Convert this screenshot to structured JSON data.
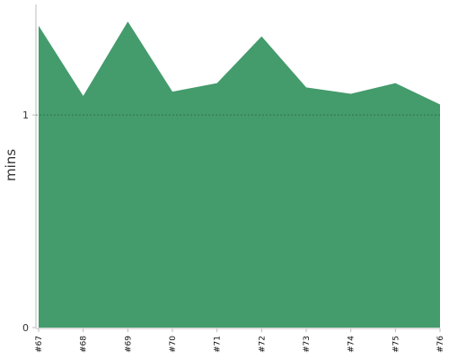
{
  "chart_data": {
    "type": "area",
    "title": "",
    "xlabel": "",
    "ylabel": "mins",
    "categories": [
      "#67",
      "#68",
      "#69",
      "#70",
      "#71",
      "#72",
      "#73",
      "#74",
      "#75",
      "#76"
    ],
    "series": [
      {
        "values": [
          1.42,
          1.09,
          1.44,
          1.11,
          1.15,
          1.37,
          1.13,
          1.1,
          1.15,
          1.05
        ]
      }
    ],
    "ylim": [
      0,
      1.52
    ],
    "yticks": [
      0,
      1
    ],
    "reference_line": {
      "value": 1,
      "style": "dotted"
    },
    "grid": false,
    "colors": {
      "area": "#449b6c",
      "axis": "#bbbbbb",
      "reference_line": "#2f6b4c"
    }
  }
}
